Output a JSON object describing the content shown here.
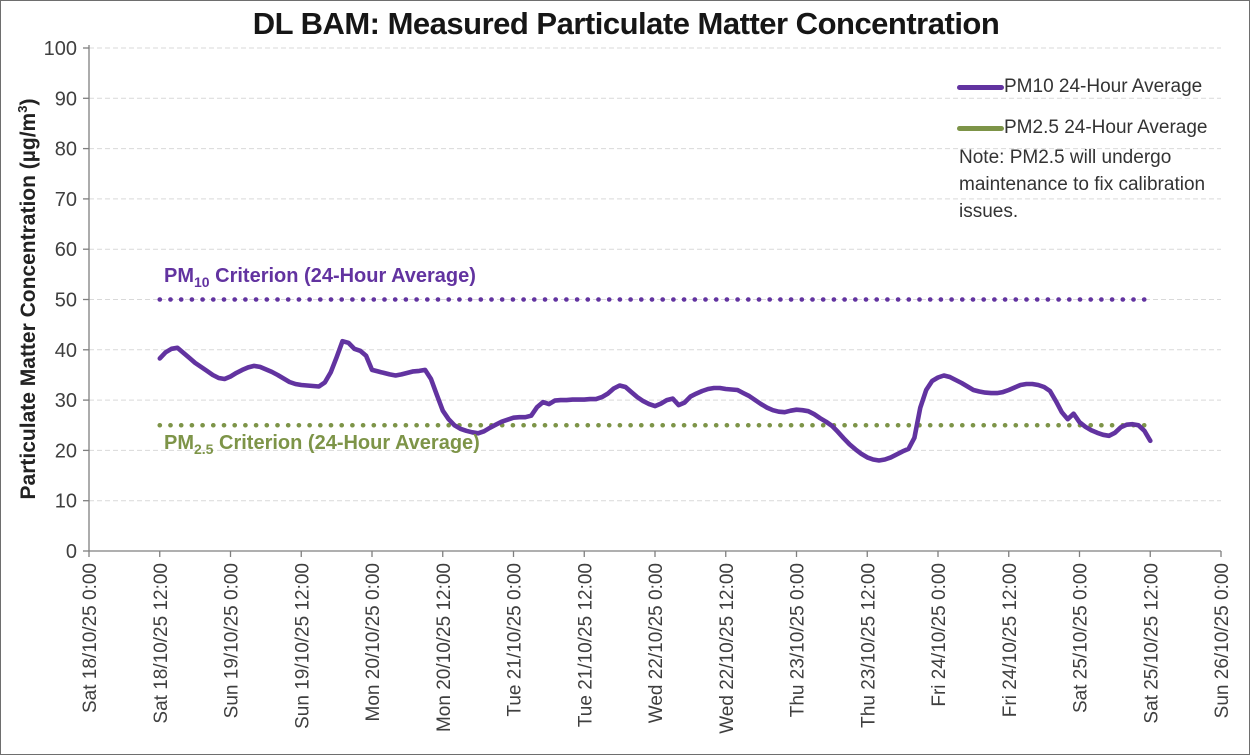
{
  "header": {
    "title": "DL BAM: Measured Particulate Matter Concentration"
  },
  "axes": {
    "y_title_pre": "Particulate Matter Concentration (µg/m",
    "y_title_sup": "3",
    "y_title_post": ")"
  },
  "criterion_labels": [
    {
      "pre": "PM",
      "sub": "10",
      "post": " Criterion (24-Hour Average)"
    },
    {
      "pre": "PM",
      "sub": "2.5",
      "post": " Criterion (24-Hour Average)"
    }
  ],
  "legend": [
    {
      "label": "PM10 24-Hour Average",
      "color": "#6233A0"
    },
    {
      "label": "PM2.5 24-Hour Average",
      "color": "#7D9448"
    }
  ],
  "note": {
    "text": "Note: PM2.5 will undergo\nmaintenance to fix calibration\nissues."
  },
  "palette": {
    "pm10": "#6233A0",
    "pm25": "#7D9448",
    "grid": "#D9D9D9",
    "axis": "#7F7F7F",
    "tick_text": "#3F3F3F"
  },
  "chart_data": {
    "type": "line",
    "title": "DL BAM: Measured Particulate Matter Concentration",
    "xlabel": "",
    "ylabel": "Particulate Matter Concentration (µg/m³)",
    "ylim": [
      0,
      100
    ],
    "y_ticks": [
      0,
      10,
      20,
      30,
      40,
      50,
      60,
      70,
      80,
      90,
      100
    ],
    "grid": "horizontal-dashed",
    "legend_position": "top-right-inside",
    "x_axis_span_hours": 192,
    "x_tick_interval_hours": 12,
    "x_tick_labels": [
      "Sat 18/10/25 0:00",
      "Sat 18/10/25 12:00",
      "Sun 19/10/25 0:00",
      "Sun 19/10/25 12:00",
      "Mon 20/10/25 0:00",
      "Mon 20/10/25 12:00",
      "Tue 21/10/25 0:00",
      "Tue 21/10/25 12:00",
      "Wed 22/10/25 0:00",
      "Wed 22/10/25 12:00",
      "Thu 23/10/25 0:00",
      "Thu 23/10/25 12:00",
      "Fri 24/10/25 0:00",
      "Fri 24/10/25 12:00",
      "Sat 25/10/25 0:00",
      "Sat 25/10/25 12:00",
      "Sun 26/10/25 0:00"
    ],
    "series": [
      {
        "name": "PM10 24-Hour Average",
        "color": "#6233A0",
        "style": "solid",
        "units": "µg/m³",
        "points_hours_from_axis_start_vs_value": [
          [
            12,
            38.3
          ],
          [
            13,
            39.5
          ],
          [
            14,
            40.2
          ],
          [
            15,
            40.4
          ],
          [
            16,
            39.4
          ],
          [
            17,
            38.4
          ],
          [
            18,
            37.4
          ],
          [
            19,
            36.6
          ],
          [
            20,
            35.8
          ],
          [
            21,
            35.0
          ],
          [
            22,
            34.4
          ],
          [
            23,
            34.2
          ],
          [
            24,
            34.7
          ],
          [
            25,
            35.4
          ],
          [
            26,
            36.0
          ],
          [
            27,
            36.5
          ],
          [
            28,
            36.8
          ],
          [
            29,
            36.6
          ],
          [
            30,
            36.1
          ],
          [
            31,
            35.6
          ],
          [
            32,
            35.0
          ],
          [
            33,
            34.3
          ],
          [
            34,
            33.6
          ],
          [
            35,
            33.2
          ],
          [
            36,
            33.0
          ],
          [
            37,
            32.9
          ],
          [
            38,
            32.8
          ],
          [
            39,
            32.7
          ],
          [
            40,
            33.5
          ],
          [
            41,
            35.5
          ],
          [
            42,
            38.5
          ],
          [
            43,
            41.7
          ],
          [
            44,
            41.4
          ],
          [
            45,
            40.2
          ],
          [
            46,
            39.8
          ],
          [
            47,
            38.8
          ],
          [
            48,
            36.0
          ],
          [
            49,
            35.7
          ],
          [
            50,
            35.4
          ],
          [
            51,
            35.1
          ],
          [
            52,
            34.9
          ],
          [
            53,
            35.1
          ],
          [
            54,
            35.4
          ],
          [
            55,
            35.7
          ],
          [
            56,
            35.8
          ],
          [
            57,
            36.0
          ],
          [
            58,
            34.2
          ],
          [
            59,
            31.0
          ],
          [
            60,
            27.9
          ],
          [
            61,
            26.2
          ],
          [
            62,
            25.0
          ],
          [
            63,
            24.3
          ],
          [
            64,
            23.9
          ],
          [
            65,
            23.6
          ],
          [
            66,
            23.4
          ],
          [
            67,
            23.8
          ],
          [
            68,
            24.5
          ],
          [
            69,
            25.1
          ],
          [
            70,
            25.7
          ],
          [
            71,
            26.1
          ],
          [
            72,
            26.5
          ],
          [
            73,
            26.6
          ],
          [
            74,
            26.6
          ],
          [
            75,
            26.9
          ],
          [
            76,
            28.6
          ],
          [
            77,
            29.6
          ],
          [
            78,
            29.2
          ],
          [
            79,
            29.9
          ],
          [
            80,
            30.0
          ],
          [
            81,
            30.0
          ],
          [
            82,
            30.1
          ],
          [
            83,
            30.1
          ],
          [
            84,
            30.1
          ],
          [
            85,
            30.2
          ],
          [
            86,
            30.2
          ],
          [
            87,
            30.6
          ],
          [
            88,
            31.3
          ],
          [
            89,
            32.3
          ],
          [
            90,
            32.9
          ],
          [
            91,
            32.6
          ],
          [
            92,
            31.6
          ],
          [
            93,
            30.6
          ],
          [
            94,
            29.8
          ],
          [
            95,
            29.2
          ],
          [
            96,
            28.8
          ],
          [
            97,
            29.3
          ],
          [
            98,
            30.0
          ],
          [
            99,
            30.3
          ],
          [
            100,
            29.0
          ],
          [
            101,
            29.5
          ],
          [
            102,
            30.7
          ],
          [
            103,
            31.3
          ],
          [
            104,
            31.8
          ],
          [
            105,
            32.2
          ],
          [
            106,
            32.4
          ],
          [
            107,
            32.4
          ],
          [
            108,
            32.2
          ],
          [
            109,
            32.1
          ],
          [
            110,
            32.0
          ],
          [
            111,
            31.4
          ],
          [
            112,
            30.8
          ],
          [
            113,
            30.0
          ],
          [
            114,
            29.2
          ],
          [
            115,
            28.5
          ],
          [
            116,
            28.0
          ],
          [
            117,
            27.7
          ],
          [
            118,
            27.6
          ],
          [
            119,
            27.9
          ],
          [
            120,
            28.1
          ],
          [
            121,
            28.0
          ],
          [
            122,
            27.8
          ],
          [
            123,
            27.2
          ],
          [
            124,
            26.4
          ],
          [
            125,
            25.7
          ],
          [
            126,
            24.9
          ],
          [
            127,
            23.7
          ],
          [
            128,
            22.4
          ],
          [
            129,
            21.2
          ],
          [
            130,
            20.2
          ],
          [
            131,
            19.3
          ],
          [
            132,
            18.6
          ],
          [
            133,
            18.2
          ],
          [
            134,
            18.0
          ],
          [
            135,
            18.2
          ],
          [
            136,
            18.6
          ],
          [
            137,
            19.2
          ],
          [
            138,
            19.8
          ],
          [
            139,
            20.3
          ],
          [
            140,
            22.5
          ],
          [
            141,
            28.5
          ],
          [
            142,
            32.0
          ],
          [
            143,
            33.8
          ],
          [
            144,
            34.5
          ],
          [
            145,
            34.9
          ],
          [
            146,
            34.6
          ],
          [
            147,
            34.0
          ],
          [
            148,
            33.4
          ],
          [
            149,
            32.7
          ],
          [
            150,
            32.0
          ],
          [
            151,
            31.7
          ],
          [
            152,
            31.5
          ],
          [
            153,
            31.4
          ],
          [
            154,
            31.4
          ],
          [
            155,
            31.6
          ],
          [
            156,
            32.0
          ],
          [
            157,
            32.5
          ],
          [
            158,
            33.0
          ],
          [
            159,
            33.2
          ],
          [
            160,
            33.2
          ],
          [
            161,
            33.0
          ],
          [
            162,
            32.6
          ],
          [
            163,
            31.8
          ],
          [
            164,
            29.8
          ],
          [
            165,
            27.6
          ],
          [
            166,
            26.2
          ],
          [
            167,
            27.3
          ],
          [
            168,
            25.6
          ],
          [
            169,
            24.7
          ],
          [
            170,
            24.0
          ],
          [
            171,
            23.5
          ],
          [
            172,
            23.1
          ],
          [
            173,
            22.9
          ],
          [
            174,
            23.5
          ],
          [
            175,
            24.6
          ],
          [
            176,
            25.1
          ],
          [
            177,
            25.2
          ],
          [
            178,
            25.0
          ],
          [
            179,
            23.9
          ],
          [
            180,
            21.9
          ]
        ]
      },
      {
        "name": "PM2.5 24-Hour Average",
        "color": "#7D9448",
        "style": "solid",
        "points_hours_from_axis_start_vs_value": []
      }
    ],
    "reference_lines": [
      {
        "label": "PM10 Criterion (24-Hour Average)",
        "value": 50,
        "color": "#6233A0",
        "style": "dotted",
        "span_hours": [
          12,
          180
        ]
      },
      {
        "label": "PM2.5 Criterion (24-Hour Average)",
        "value": 25,
        "color": "#7D9448",
        "style": "dotted",
        "span_hours": [
          12,
          180
        ]
      }
    ],
    "annotations": [
      "PM10 Criterion (24-Hour Average)",
      "PM2.5 Criterion (24-Hour Average)",
      "Note: PM2.5 will undergo maintenance to fix calibration issues."
    ]
  }
}
